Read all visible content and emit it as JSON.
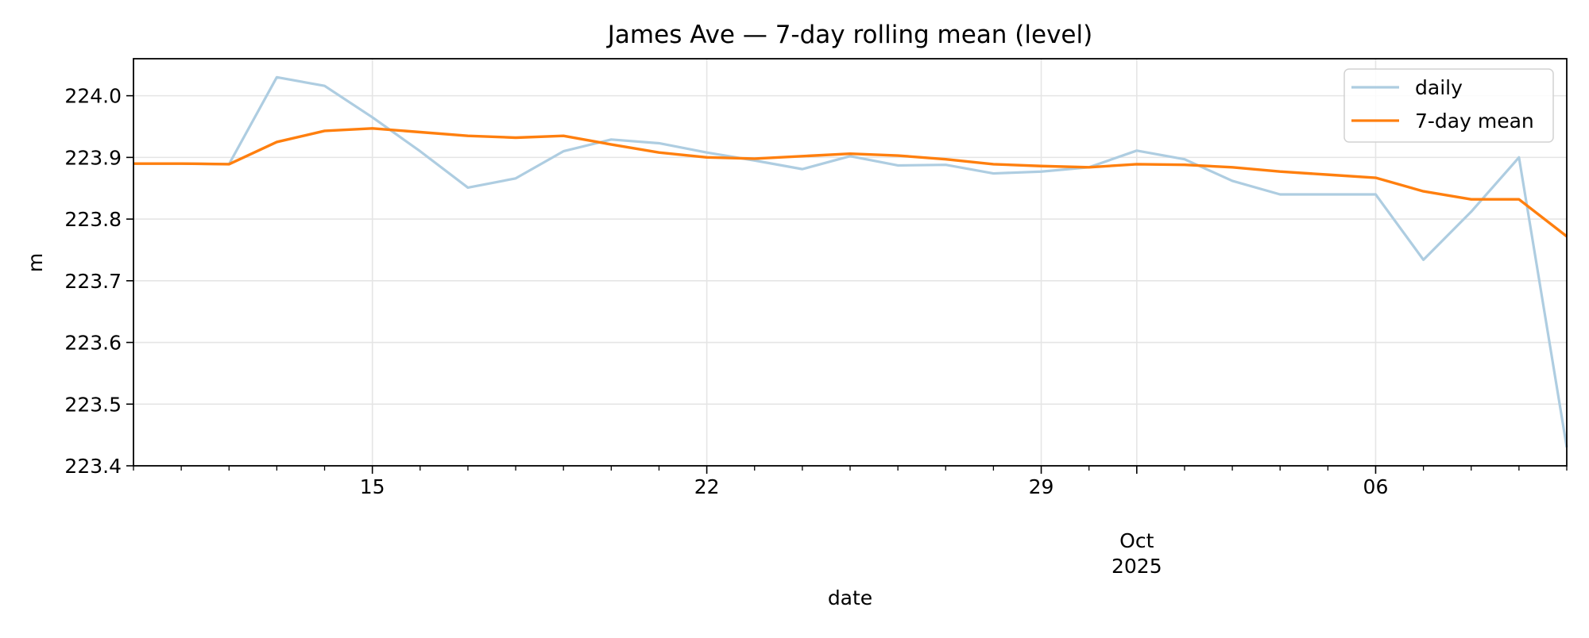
{
  "chart_data": {
    "type": "line",
    "title": "James Ave — 7-day rolling mean (level)",
    "xlabel": "date",
    "ylabel": "m",
    "xlim": [
      "2025-09-10",
      "2025-10-10"
    ],
    "ylim": [
      223.4,
      224.06
    ],
    "grid": true,
    "legend_position": "top-right",
    "y_ticks": [
      {
        "value": 223.4,
        "label": "223.4"
      },
      {
        "value": 223.5,
        "label": "223.5"
      },
      {
        "value": 223.6,
        "label": "223.6"
      },
      {
        "value": 223.7,
        "label": "223.7"
      },
      {
        "value": 223.8,
        "label": "223.8"
      },
      {
        "value": 223.9,
        "label": "223.9"
      },
      {
        "value": 224.0,
        "label": "224.0"
      }
    ],
    "x_major_ticks": [
      {
        "date": "2025-09-15",
        "label": "15"
      },
      {
        "date": "2025-09-22",
        "label": "22"
      },
      {
        "date": "2025-09-29",
        "label": "29"
      },
      {
        "date": "2025-10-01",
        "label": "Oct\n2025"
      },
      {
        "date": "2025-10-06",
        "label": "06"
      }
    ],
    "x_minor_ticks": [
      "2025-09-10",
      "2025-09-11",
      "2025-09-12",
      "2025-09-13",
      "2025-09-14",
      "2025-09-16",
      "2025-09-17",
      "2025-09-18",
      "2025-09-19",
      "2025-09-20",
      "2025-09-21",
      "2025-09-23",
      "2025-09-24",
      "2025-09-25",
      "2025-09-26",
      "2025-09-27",
      "2025-09-28",
      "2025-09-30",
      "2025-10-02",
      "2025-10-03",
      "2025-10-04",
      "2025-10-05",
      "2025-10-07",
      "2025-10-08",
      "2025-10-09",
      "2025-10-10"
    ],
    "series": [
      {
        "name": "daily",
        "color": "#aecde1",
        "x": [
          "2025-09-10",
          "2025-09-11",
          "2025-09-12",
          "2025-09-13",
          "2025-09-14",
          "2025-09-15",
          "2025-09-16",
          "2025-09-17",
          "2025-09-18",
          "2025-09-19",
          "2025-09-20",
          "2025-09-21",
          "2025-09-22",
          "2025-09-23",
          "2025-09-24",
          "2025-09-25",
          "2025-09-26",
          "2025-09-27",
          "2025-09-28",
          "2025-09-29",
          "2025-09-30",
          "2025-10-01",
          "2025-10-02",
          "2025-10-03",
          "2025-10-04",
          "2025-10-05",
          "2025-10-06",
          "2025-10-07",
          "2025-10-08",
          "2025-10-09",
          "2025-10-10"
        ],
        "values": [
          223.89,
          223.89,
          223.889,
          224.03,
          224.016,
          223.965,
          223.91,
          223.851,
          223.866,
          223.91,
          223.929,
          223.923,
          223.908,
          223.895,
          223.881,
          223.902,
          223.887,
          223.888,
          223.874,
          223.877,
          223.884,
          223.911,
          223.897,
          223.862,
          223.84,
          223.84,
          223.84,
          223.734,
          223.812,
          223.9,
          223.43
        ]
      },
      {
        "name": "7-day mean",
        "color": "#ff7f0e",
        "x": [
          "2025-09-10",
          "2025-09-11",
          "2025-09-12",
          "2025-09-13",
          "2025-09-14",
          "2025-09-15",
          "2025-09-16",
          "2025-09-17",
          "2025-09-18",
          "2025-09-19",
          "2025-09-20",
          "2025-09-21",
          "2025-09-22",
          "2025-09-23",
          "2025-09-24",
          "2025-09-25",
          "2025-09-26",
          "2025-09-27",
          "2025-09-28",
          "2025-09-29",
          "2025-09-30",
          "2025-10-01",
          "2025-10-02",
          "2025-10-03",
          "2025-10-04",
          "2025-10-05",
          "2025-10-06",
          "2025-10-07",
          "2025-10-08",
          "2025-10-09",
          "2025-10-10"
        ],
        "values": [
          223.89,
          223.89,
          223.889,
          223.925,
          223.943,
          223.947,
          223.941,
          223.935,
          223.932,
          223.935,
          223.921,
          223.908,
          223.9,
          223.898,
          223.902,
          223.906,
          223.903,
          223.897,
          223.889,
          223.886,
          223.884,
          223.889,
          223.888,
          223.884,
          223.877,
          223.872,
          223.867,
          223.845,
          223.832,
          223.832,
          223.772
        ]
      }
    ]
  }
}
